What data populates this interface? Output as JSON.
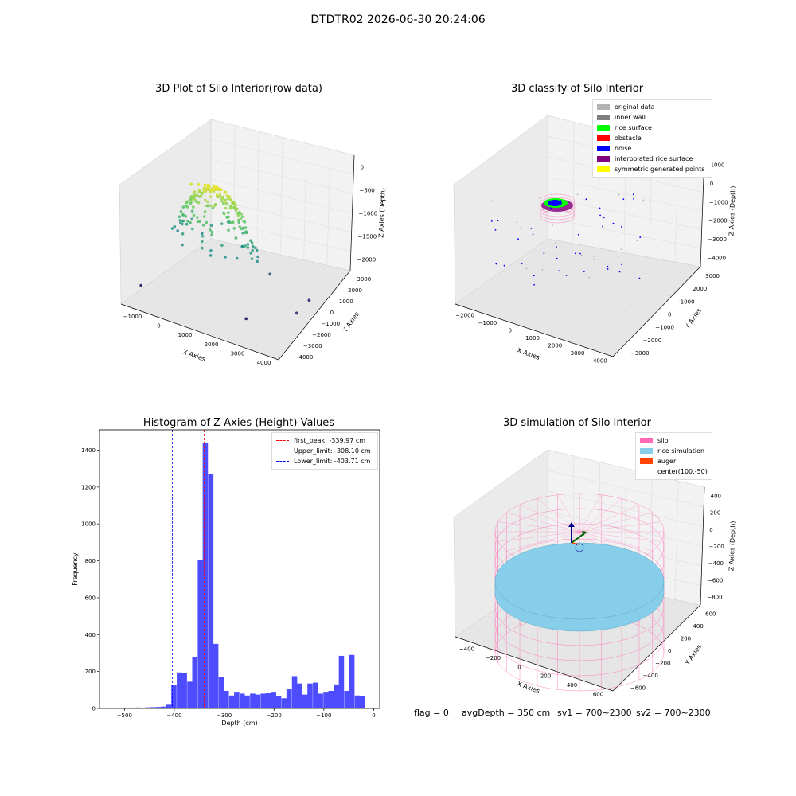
{
  "suptitle": "DTDTR02 2026-06-30 20:24:06",
  "colors": {
    "pane": "#f2f2f2",
    "grid": "#e0e0e0",
    "hist_bar": "#4d4dff",
    "peak": "#ff0000",
    "limit": "#0000ff"
  },
  "chart_data": [
    {
      "id": "raw",
      "type": "scatter",
      "title": "3D Plot of Silo Interior(row data)",
      "xlabel": "X Axies",
      "ylabel": "Y Axies",
      "zlabel": "Z Axies (Depth)",
      "x_ticks": [
        "−1000",
        "0",
        "1000",
        "2000",
        "3000",
        "4000"
      ],
      "y_ticks": [
        "−4000",
        "−3000",
        "−2000",
        "−1000",
        "0",
        "1000",
        "2000",
        "3000"
      ],
      "z_ticks": [
        "−2000",
        "−1500",
        "−1000",
        "−500",
        "0"
      ],
      "colormap": "viridis",
      "points_approx": [
        {
          "x": 0,
          "y": 0,
          "z": -100
        },
        {
          "x": 200,
          "y": 100,
          "z": -80
        },
        {
          "x": -200,
          "y": -150,
          "z": -120
        },
        {
          "x": 500,
          "y": 300,
          "z": -400
        },
        {
          "x": -400,
          "y": -400,
          "z": -700
        },
        {
          "x": 800,
          "y": 600,
          "z": -600
        },
        {
          "x": -600,
          "y": 200,
          "z": -900
        },
        {
          "x": 1200,
          "y": 1000,
          "z": -1100
        },
        {
          "x": 2000,
          "y": 1500,
          "z": -1500
        },
        {
          "x": 3200,
          "y": 2000,
          "z": -1800
        },
        {
          "x": 3500,
          "y": -200,
          "z": -1800
        },
        {
          "x": -1000,
          "y": -3000,
          "z": -1900
        },
        {
          "x": 2500,
          "y": -2500,
          "z": -1900
        }
      ]
    },
    {
      "id": "classify",
      "type": "scatter",
      "title": "3D classify of Silo Interior",
      "xlabel": "X Axies",
      "ylabel": "Y Axies",
      "zlabel": "Z Axies (Depth)",
      "x_ticks": [
        "−2000",
        "−1000",
        "0",
        "1000",
        "2000",
        "3000",
        "4000"
      ],
      "y_ticks": [
        "−3000",
        "−2000",
        "−1000",
        "0",
        "1000",
        "2000",
        "3000"
      ],
      "z_ticks": [
        "−4000",
        "−3000",
        "−2000",
        "−1000",
        "0",
        "1000"
      ],
      "legend": [
        {
          "label": "original data",
          "color": "#b3b3b3"
        },
        {
          "label": "inner wall",
          "color": "#808080"
        },
        {
          "label": "rice surface",
          "color": "#00ff00"
        },
        {
          "label": "obstacle",
          "color": "#ff0000"
        },
        {
          "label": "noise",
          "color": "#0000ff"
        },
        {
          "label": "interpolated rice surface",
          "color": "#800080"
        },
        {
          "label": "symmetric generated points",
          "color": "#ffff00"
        }
      ]
    },
    {
      "id": "hist",
      "type": "bar",
      "title": "Histogram of Z-Axies (Height) Values",
      "xlabel": "Depth (cm)",
      "ylabel": "Frequency",
      "xlim": [
        -550,
        12
      ],
      "ylim": [
        0,
        1510
      ],
      "x_ticks": [
        -500,
        -400,
        -300,
        -200,
        -100,
        0
      ],
      "y_ticks": [
        0,
        200,
        400,
        600,
        800,
        1000,
        1200,
        1400
      ],
      "bin_width": 10.5,
      "bins": [
        {
          "x": -532,
          "v": 2
        },
        {
          "x": -521,
          "v": 1
        },
        {
          "x": -511,
          "v": 3
        },
        {
          "x": -500,
          "v": 2
        },
        {
          "x": -490,
          "v": 4
        },
        {
          "x": -479,
          "v": 5
        },
        {
          "x": -469,
          "v": 4
        },
        {
          "x": -458,
          "v": 6
        },
        {
          "x": -448,
          "v": 7
        },
        {
          "x": -437,
          "v": 8
        },
        {
          "x": -427,
          "v": 10
        },
        {
          "x": -416,
          "v": 20
        },
        {
          "x": -406,
          "v": 125
        },
        {
          "x": -395,
          "v": 195
        },
        {
          "x": -385,
          "v": 190
        },
        {
          "x": -374,
          "v": 145
        },
        {
          "x": -364,
          "v": 280
        },
        {
          "x": -353,
          "v": 805
        },
        {
          "x": -343,
          "v": 1440
        },
        {
          "x": -332,
          "v": 1270
        },
        {
          "x": -322,
          "v": 350
        },
        {
          "x": -311,
          "v": 170
        },
        {
          "x": -301,
          "v": 95
        },
        {
          "x": -290,
          "v": 70
        },
        {
          "x": -280,
          "v": 90
        },
        {
          "x": -269,
          "v": 80
        },
        {
          "x": -259,
          "v": 70
        },
        {
          "x": -248,
          "v": 80
        },
        {
          "x": -238,
          "v": 75
        },
        {
          "x": -227,
          "v": 80
        },
        {
          "x": -217,
          "v": 85
        },
        {
          "x": -206,
          "v": 90
        },
        {
          "x": -196,
          "v": 65
        },
        {
          "x": -185,
          "v": 55
        },
        {
          "x": -175,
          "v": 105
        },
        {
          "x": -164,
          "v": 175
        },
        {
          "x": -154,
          "v": 135
        },
        {
          "x": -143,
          "v": 75
        },
        {
          "x": -133,
          "v": 135
        },
        {
          "x": -122,
          "v": 140
        },
        {
          "x": -112,
          "v": 80
        },
        {
          "x": -101,
          "v": 90
        },
        {
          "x": -91,
          "v": 95
        },
        {
          "x": -80,
          "v": 130
        },
        {
          "x": -70,
          "v": 285
        },
        {
          "x": -59,
          "v": 95
        },
        {
          "x": -49,
          "v": 290
        },
        {
          "x": -38,
          "v": 70
        },
        {
          "x": -28,
          "v": 65
        }
      ],
      "lines": [
        {
          "label": "first_peak: -339.97 cm",
          "value": -339.97,
          "color": "#ff0000"
        },
        {
          "label": "Upper_limit: -308.10 cm",
          "value": -308.1,
          "color": "#0000ff"
        },
        {
          "label": "Lower_limit: -403.71 cm",
          "value": -403.71,
          "color": "#0000ff"
        }
      ]
    },
    {
      "id": "sim",
      "type": "scatter",
      "title": "3D simulation of Silo Interior",
      "xlabel": "X Axies",
      "ylabel": "Y Axies",
      "zlabel": "Z Axies (Depth)",
      "x_ticks": [
        "−400",
        "−200",
        "0",
        "200",
        "400",
        "600"
      ],
      "y_ticks": [
        "−600",
        "−400",
        "−200",
        "0",
        "200",
        "400",
        "600"
      ],
      "z_ticks": [
        "−800",
        "−600",
        "−400",
        "−200",
        "0",
        "200",
        "400"
      ],
      "legend": [
        {
          "label": "silo",
          "color": "#ff69b4"
        },
        {
          "label": "rice simulation",
          "color": "#87ceeb"
        },
        {
          "label": "auger",
          "color": "#ff4500"
        },
        {
          "label": "center(100,-50)",
          "color": ""
        }
      ]
    }
  ],
  "status": {
    "flag": "flag = 0",
    "avg": "avgDepth = 350 cm",
    "sv1": "sv1 = 700~2300",
    "sv2": "sv2 = 700~2300"
  }
}
